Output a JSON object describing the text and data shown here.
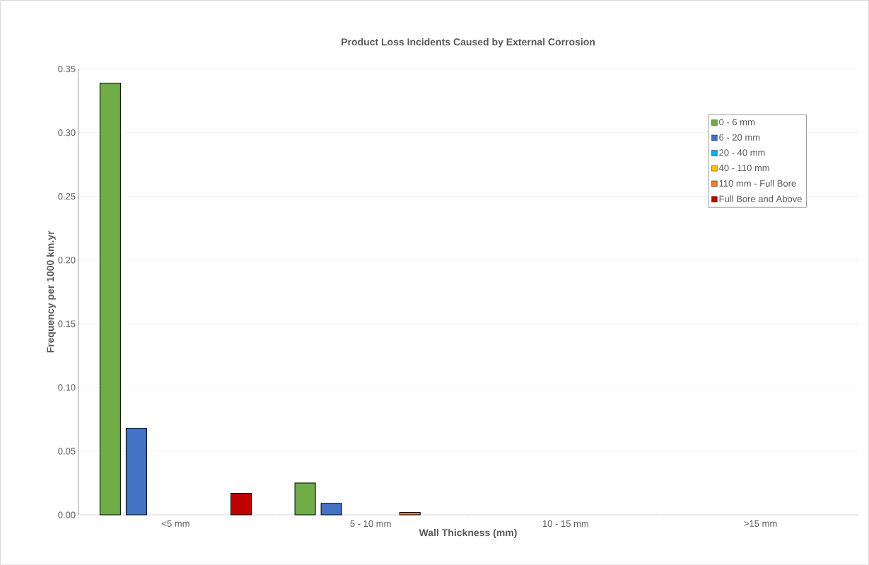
{
  "chart_data": {
    "type": "bar",
    "title": "Product Loss Incidents Caused by External Corrosion",
    "xlabel": "Wall Thickness (mm)",
    "ylabel": "Frequency per 1000 km.yr",
    "categories": [
      "<5 mm",
      "5 - 10 mm",
      "10 - 15 mm",
      ">15 mm"
    ],
    "series": [
      {
        "name": "0 - 6 mm",
        "color": "#70ad47",
        "values": [
          0.339,
          0.025,
          null,
          null
        ]
      },
      {
        "name": "6 - 20 mm",
        "color": "#4472c4",
        "values": [
          0.068,
          0.009,
          null,
          null
        ]
      },
      {
        "name": "20 - 40 mm",
        "color": "#00b0f0",
        "values": [
          null,
          null,
          null,
          null
        ]
      },
      {
        "name": "40 - 110 mm",
        "color": "#ffc000",
        "values": [
          null,
          null,
          null,
          null
        ]
      },
      {
        "name": "110 mm - Full Bore",
        "color": "#ed7d31",
        "values": [
          null,
          0.002,
          null,
          null
        ]
      },
      {
        "name": "Full Bore and Above",
        "color": "#c00000",
        "values": [
          0.017,
          null,
          null,
          null
        ]
      }
    ],
    "ylim": [
      0,
      0.35
    ],
    "yticks": [
      {
        "value": 0,
        "label": "0.00"
      },
      {
        "value": 0.05,
        "label": "0.05"
      },
      {
        "value": 0.1,
        "label": "0.10"
      },
      {
        "value": 0.15,
        "label": "0.15"
      },
      {
        "value": 0.2,
        "label": "0.20"
      },
      {
        "value": 0.25,
        "label": "0.25"
      },
      {
        "value": 0.3,
        "label": "0.30"
      },
      {
        "value": 0.35,
        "label": "0.35"
      }
    ],
    "grid": "y",
    "legend": "top right"
  }
}
